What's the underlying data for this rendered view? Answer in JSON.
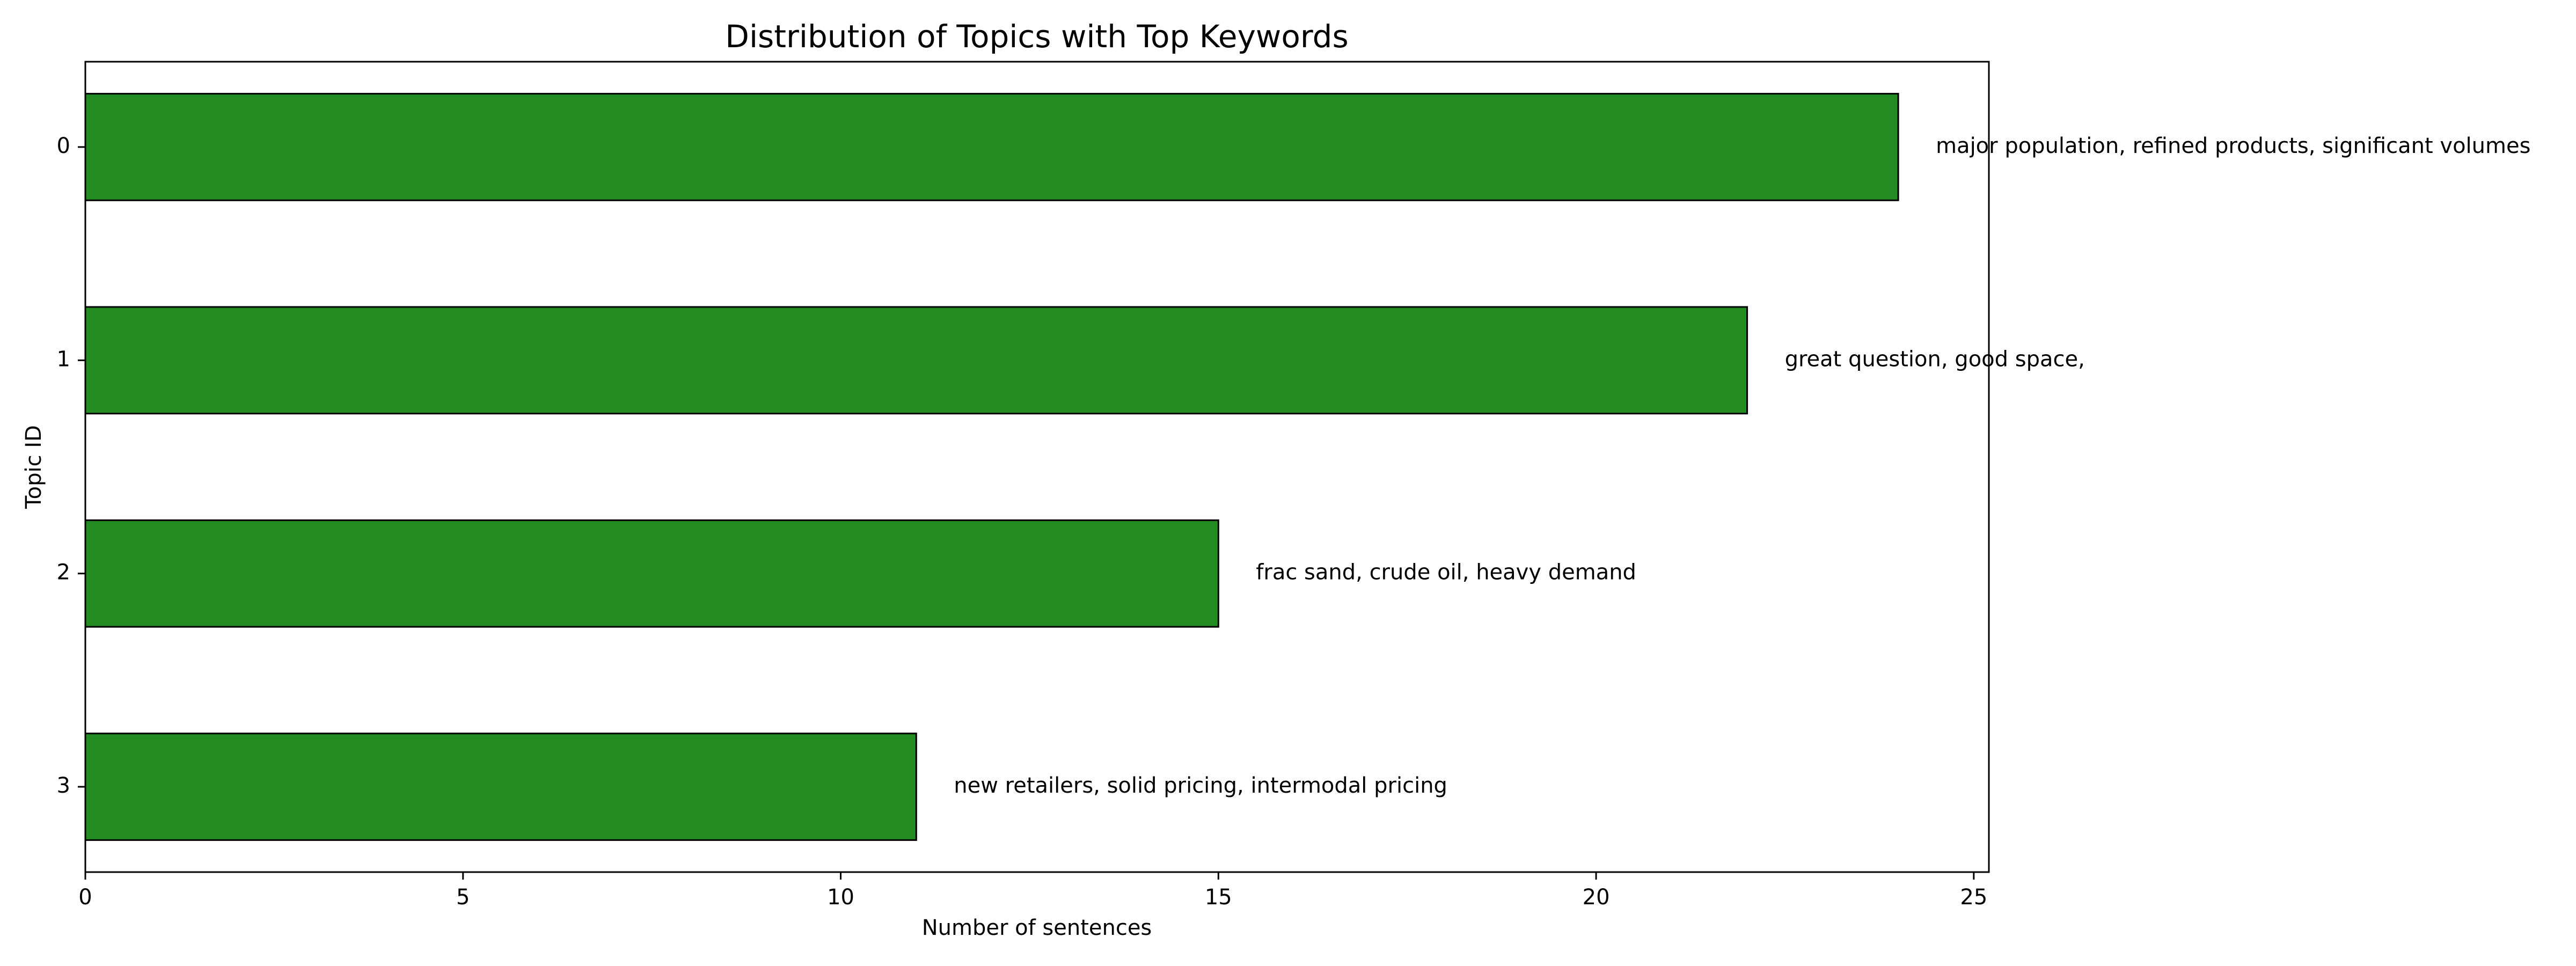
{
  "chart_data": {
    "type": "bar",
    "orientation": "horizontal",
    "title": "Distribution of Topics with Top Keywords",
    "xlabel": "Number of sentences",
    "ylabel": "Topic ID",
    "categories": [
      "0",
      "1",
      "2",
      "3"
    ],
    "values": [
      24,
      22,
      15,
      11
    ],
    "annotations": [
      "major population, refined products, significant volumes",
      "great question, good space,",
      "frac sand, crude oil, heavy demand",
      "new retailers, solid pricing, intermodal pricing"
    ],
    "xlim": [
      0,
      25.2
    ],
    "xticks": [
      0,
      5,
      10,
      15,
      20,
      25
    ],
    "grid": false,
    "legend": "none",
    "bar_color": "#228b22",
    "edge_color": "#000000"
  }
}
